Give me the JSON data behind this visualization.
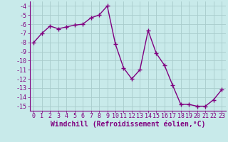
{
  "hours": [
    0,
    1,
    2,
    3,
    4,
    5,
    6,
    7,
    8,
    9,
    10,
    11,
    12,
    13,
    14,
    15,
    16,
    17,
    18,
    19,
    20,
    21,
    22,
    23
  ],
  "values": [
    -8.0,
    -7.0,
    -6.2,
    -6.5,
    -6.3,
    -6.1,
    -6.0,
    -5.3,
    -5.0,
    -4.0,
    -8.2,
    -10.8,
    -12.0,
    -11.0,
    -6.7,
    -9.2,
    -10.5,
    -12.7,
    -14.8,
    -14.8,
    -15.0,
    -15.0,
    -14.3,
    -13.2
  ],
  "line_color": "#800080",
  "marker": "+",
  "bg_color": "#c8eaea",
  "grid_color": "#a8cccc",
  "xlabel": "Windchill (Refroidissement éolien,°C)",
  "ylim": [
    -15.5,
    -3.5
  ],
  "yticks": [
    -15,
    -14,
    -13,
    -12,
    -11,
    -10,
    -9,
    -8,
    -7,
    -6,
    -5,
    -4
  ],
  "xlim": [
    -0.5,
    23.5
  ],
  "xticks": [
    0,
    1,
    2,
    3,
    4,
    5,
    6,
    7,
    8,
    9,
    10,
    11,
    12,
    13,
    14,
    15,
    16,
    17,
    18,
    19,
    20,
    21,
    22,
    23
  ],
  "xlabel_fontsize": 7,
  "tick_fontsize": 6,
  "line_width": 1.0,
  "marker_size": 4,
  "marker_ew": 1.0
}
